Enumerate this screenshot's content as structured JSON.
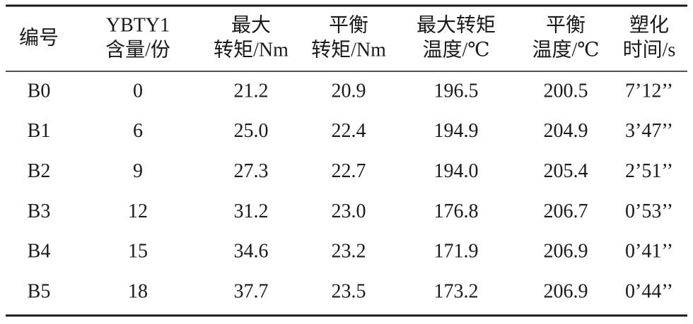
{
  "table": {
    "header": [
      [
        "编号"
      ],
      [
        "YBTY1",
        "含量/份"
      ],
      [
        "最大",
        "转矩/Nm"
      ],
      [
        "平衡",
        "转矩/Nm"
      ],
      [
        "最大转矩",
        "温度/℃"
      ],
      [
        "平衡",
        "温度/℃"
      ],
      [
        "塑化",
        "时间/s"
      ]
    ],
    "rows": [
      [
        "B0",
        "0",
        "21.2",
        "20.9",
        "196.5",
        "200.5",
        "7’12’’"
      ],
      [
        "B1",
        "6",
        "25.0",
        "22.4",
        "194.9",
        "204.9",
        "3’47’’"
      ],
      [
        "B2",
        "9",
        "27.3",
        "22.7",
        "194.0",
        "205.4",
        "2’51’’"
      ],
      [
        "B3",
        "12",
        "31.2",
        "23.0",
        "176.8",
        "206.7",
        "0’53’’"
      ],
      [
        "B4",
        "15",
        "34.6",
        "23.2",
        "171.9",
        "206.9",
        "0’41’’"
      ],
      [
        "B5",
        "18",
        "37.7",
        "23.5",
        "173.2",
        "206.9",
        "0’44’’"
      ]
    ]
  }
}
